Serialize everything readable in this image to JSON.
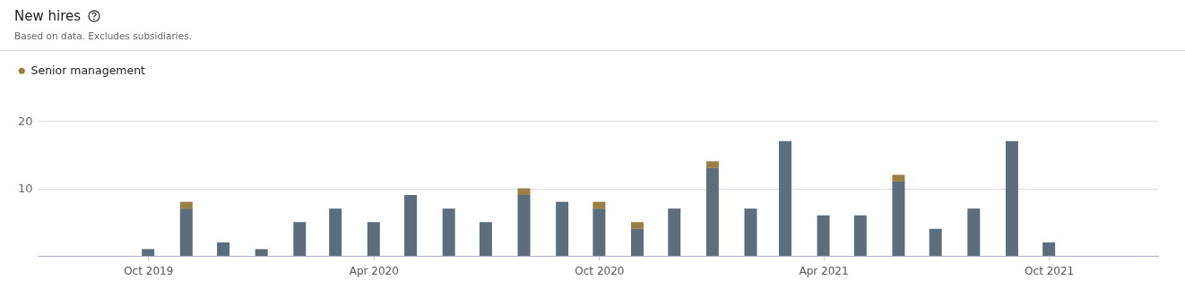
{
  "chart_data": {
    "type": "bar",
    "title": "New hires",
    "subtitle": "Based on data. Excludes subsidiaries.",
    "x": [
      "2019-10",
      "2019-11",
      "2019-12",
      "2020-01",
      "2020-02",
      "2020-03",
      "2020-04",
      "2020-05",
      "2020-06",
      "2020-07",
      "2020-08",
      "2020-09",
      "2020-10",
      "2020-11",
      "2020-12",
      "2021-01",
      "2021-02",
      "2021-03",
      "2021-04",
      "2021-05",
      "2021-06",
      "2021-07",
      "2021-08",
      "2021-09",
      "2021-10"
    ],
    "stacked": true,
    "series": [
      {
        "color": "#5c6e7c",
        "values": [
          1,
          7,
          2,
          1,
          5,
          7,
          5,
          9,
          7,
          5,
          9,
          8,
          7,
          4,
          7,
          13,
          7,
          17,
          6,
          6,
          11,
          4,
          7,
          17,
          2
        ]
      },
      {
        "name": "Senior management",
        "color": "#9a7f45",
        "values": [
          0,
          1,
          0,
          0,
          0,
          0,
          0,
          0,
          0,
          0,
          1,
          0,
          1,
          1,
          0,
          1,
          0,
          0,
          0,
          0,
          1,
          0,
          0,
          0,
          0
        ]
      }
    ],
    "xlim": [
      "2019-07-07",
      "2021-12-25"
    ],
    "xticks": [
      {
        "value": "2019-10",
        "label": "Oct 2019"
      },
      {
        "value": "2020-04",
        "label": "Apr 2020"
      },
      {
        "value": "2020-10",
        "label": "Oct 2020"
      },
      {
        "value": "2021-04",
        "label": "Apr 2021"
      },
      {
        "value": "2021-10",
        "label": "Oct 2021"
      }
    ],
    "ylim": [
      0,
      20
    ],
    "yticks": [
      {
        "value": 0,
        "label": null
      },
      10,
      20
    ],
    "grid": "y",
    "legend": "top left"
  }
}
